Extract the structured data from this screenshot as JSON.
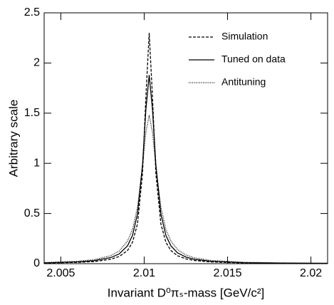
{
  "chart_data": {
    "type": "line",
    "x_label": "Invariant D⁰πₛ-mass [GeV/c²]",
    "y_label": "Arbitrary scale",
    "x": [
      2.004,
      2.006,
      2.007,
      2.008,
      2.0085,
      2.009,
      2.0093,
      2.0096,
      2.0099,
      2.0101,
      2.0103,
      2.0105,
      2.0107,
      2.011,
      2.0113,
      2.0116,
      2.012,
      2.0125,
      2.013,
      2.014,
      2.016,
      2.018,
      2.021
    ],
    "series": [
      {
        "name": "Simulation",
        "color": "#000000",
        "dash": "dashed",
        "values": [
          0.006,
          0.013,
          0.021,
          0.044,
          0.071,
          0.131,
          0.214,
          0.397,
          0.898,
          1.654,
          2.3,
          1.654,
          0.898,
          0.397,
          0.214,
          0.131,
          0.079,
          0.048,
          0.032,
          0.017,
          0.007,
          0.004,
          0.002
        ]
      },
      {
        "name": "Tuned on data",
        "color": "#000000",
        "dash": "solid",
        "values": [
          0.008,
          0.018,
          0.03,
          0.061,
          0.097,
          0.178,
          0.282,
          0.497,
          0.986,
          1.532,
          1.88,
          1.532,
          0.986,
          0.497,
          0.282,
          0.178,
          0.108,
          0.066,
          0.044,
          0.024,
          0.01,
          0.006,
          0.003
        ]
      },
      {
        "name": "Antituning",
        "color": "#000000",
        "dash": "dotted",
        "values": [
          0.011,
          0.024,
          0.04,
          0.08,
          0.126,
          0.225,
          0.343,
          0.565,
          0.968,
          1.307,
          1.48,
          1.307,
          0.968,
          0.565,
          0.343,
          0.225,
          0.14,
          0.087,
          0.059,
          0.032,
          0.014,
          0.008,
          0.004
        ]
      }
    ],
    "xlim": [
      2.004,
      2.021
    ],
    "xticks": [
      2.005,
      2.01,
      2.015,
      2.02
    ],
    "ylim": [
      0,
      2.5
    ],
    "yticks": [
      0,
      0.5,
      1,
      1.5,
      2,
      2.5
    ],
    "grid": false,
    "legend": "top-right"
  }
}
